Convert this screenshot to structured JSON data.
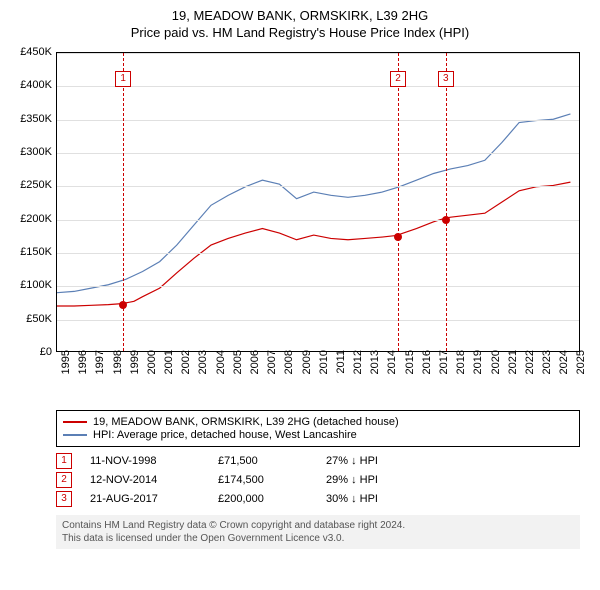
{
  "title": "19, MEADOW BANK, ORMSKIRK, L39 2HG",
  "subtitle": "Price paid vs. HM Land Registry's House Price Index (HPI)",
  "chart": {
    "type": "line",
    "xlim": [
      1995,
      2025.5
    ],
    "ylim": [
      0,
      450000
    ],
    "ytick_step": 50000,
    "yticks": [
      "£0",
      "£50K",
      "£100K",
      "£150K",
      "£200K",
      "£250K",
      "£300K",
      "£350K",
      "£400K",
      "£450K"
    ],
    "xticks": [
      1995,
      1996,
      1997,
      1998,
      1999,
      2000,
      2001,
      2002,
      2003,
      2004,
      2005,
      2006,
      2007,
      2008,
      2009,
      2010,
      2011,
      2012,
      2013,
      2014,
      2015,
      2016,
      2017,
      2018,
      2019,
      2020,
      2021,
      2022,
      2023,
      2024,
      2025
    ],
    "grid_color": "#e0e0e0",
    "background_color": "#ffffff",
    "axis_color": "#000000",
    "label_fontsize": 11,
    "series": [
      {
        "name": "19, MEADOW BANK, ORMSKIRK, L39 2HG (detached house)",
        "color": "#cc0000",
        "width": 1.2,
        "data": [
          [
            1995,
            68000
          ],
          [
            1996,
            68000
          ],
          [
            1997,
            69000
          ],
          [
            1998,
            70000
          ],
          [
            1998.8,
            71500
          ],
          [
            1999.5,
            75000
          ],
          [
            2000,
            82000
          ],
          [
            2001,
            95000
          ],
          [
            2002,
            118000
          ],
          [
            2003,
            140000
          ],
          [
            2004,
            160000
          ],
          [
            2005,
            170000
          ],
          [
            2006,
            178000
          ],
          [
            2007,
            185000
          ],
          [
            2008,
            178000
          ],
          [
            2009,
            168000
          ],
          [
            2010,
            175000
          ],
          [
            2011,
            170000
          ],
          [
            2012,
            168000
          ],
          [
            2013,
            170000
          ],
          [
            2014,
            172000
          ],
          [
            2014.85,
            174500
          ],
          [
            2015,
            176000
          ],
          [
            2016,
            185000
          ],
          [
            2017,
            195000
          ],
          [
            2017.6,
            200000
          ],
          [
            2018,
            202000
          ],
          [
            2019,
            205000
          ],
          [
            2020,
            208000
          ],
          [
            2021,
            225000
          ],
          [
            2022,
            242000
          ],
          [
            2023,
            248000
          ],
          [
            2024,
            250000
          ],
          [
            2025,
            255000
          ]
        ]
      },
      {
        "name": "HPI: Average price, detached house, West Lancashire",
        "color": "#5b7fb5",
        "width": 1.2,
        "data": [
          [
            1995,
            88000
          ],
          [
            1996,
            90000
          ],
          [
            1997,
            95000
          ],
          [
            1998,
            100000
          ],
          [
            1999,
            108000
          ],
          [
            2000,
            120000
          ],
          [
            2001,
            135000
          ],
          [
            2002,
            160000
          ],
          [
            2003,
            190000
          ],
          [
            2004,
            220000
          ],
          [
            2005,
            235000
          ],
          [
            2006,
            248000
          ],
          [
            2007,
            258000
          ],
          [
            2008,
            252000
          ],
          [
            2009,
            230000
          ],
          [
            2010,
            240000
          ],
          [
            2011,
            235000
          ],
          [
            2012,
            232000
          ],
          [
            2013,
            235000
          ],
          [
            2014,
            240000
          ],
          [
            2015,
            248000
          ],
          [
            2016,
            258000
          ],
          [
            2017,
            268000
          ],
          [
            2018,
            275000
          ],
          [
            2019,
            280000
          ],
          [
            2020,
            288000
          ],
          [
            2021,
            315000
          ],
          [
            2022,
            345000
          ],
          [
            2023,
            348000
          ],
          [
            2024,
            350000
          ],
          [
            2025,
            358000
          ]
        ]
      }
    ],
    "markers": [
      {
        "n": "1",
        "x": 1998.85,
        "y": 71500
      },
      {
        "n": "2",
        "x": 2014.85,
        "y": 174500
      },
      {
        "n": "3",
        "x": 2017.63,
        "y": 200000
      }
    ]
  },
  "legend": [
    {
      "color": "#cc0000",
      "label": "19, MEADOW BANK, ORMSKIRK, L39 2HG (detached house)"
    },
    {
      "color": "#5b7fb5",
      "label": "HPI: Average price, detached house, West Lancashire"
    }
  ],
  "events": [
    {
      "n": "1",
      "date": "11-NOV-1998",
      "price": "£71,500",
      "delta": "27% ↓ HPI"
    },
    {
      "n": "2",
      "date": "12-NOV-2014",
      "price": "£174,500",
      "delta": "29% ↓ HPI"
    },
    {
      "n": "3",
      "date": "21-AUG-2017",
      "price": "£200,000",
      "delta": "30% ↓ HPI"
    }
  ],
  "footer": {
    "line1": "Contains HM Land Registry data © Crown copyright and database right 2024.",
    "line2": "This data is licensed under the Open Government Licence v3.0."
  }
}
